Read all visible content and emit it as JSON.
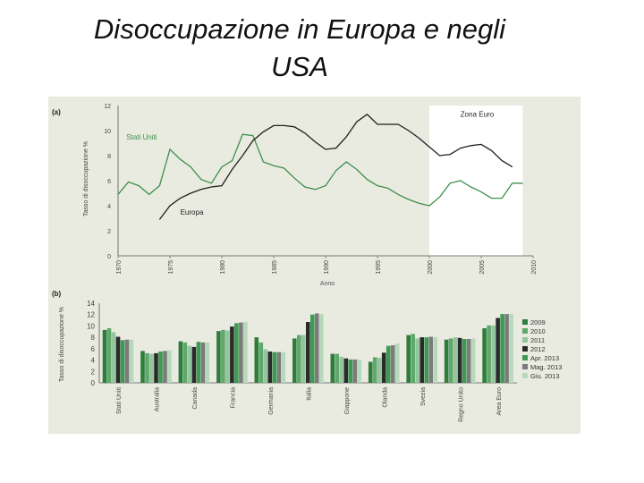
{
  "slide": {
    "title_line1": "Disoccupazione in Europa e negli",
    "title_line2": "USA"
  },
  "chart_data": [
    {
      "type": "line",
      "panel_label": "(a)",
      "ylabel": "Tasso di disoccupazione %",
      "xlabel": "Anno",
      "xlim": [
        1970,
        2010
      ],
      "ylim": [
        0,
        12
      ],
      "x_ticks": [
        1970,
        1975,
        1980,
        1985,
        1990,
        1995,
        2000,
        2005,
        2010
      ],
      "y_ticks": [
        0,
        2,
        4,
        6,
        8,
        10,
        12
      ],
      "shaded_region": {
        "label": "Zona Euro",
        "x_start": 2000,
        "x_end": 2009
      },
      "series": [
        {
          "name": "Stati Uniti",
          "color": "#3e8f4c",
          "x": [
            1970,
            1971,
            1972,
            1973,
            1974,
            1975,
            1976,
            1977,
            1978,
            1979,
            1980,
            1981,
            1982,
            1983,
            1984,
            1985,
            1986,
            1987,
            1988,
            1989,
            1990,
            1991,
            1992,
            1993,
            1994,
            1995,
            1996,
            1997,
            1998,
            1999,
            2000,
            2001,
            2002,
            2003,
            2004,
            2005,
            2006,
            2007,
            2008,
            2009
          ],
          "y": [
            4.9,
            5.9,
            5.6,
            4.9,
            5.6,
            8.5,
            7.7,
            7.1,
            6.1,
            5.8,
            7.1,
            7.6,
            9.7,
            9.6,
            7.5,
            7.2,
            7.0,
            6.2,
            5.5,
            5.3,
            5.6,
            6.8,
            7.5,
            6.9,
            6.1,
            5.6,
            5.4,
            4.9,
            4.5,
            4.2,
            4.0,
            4.7,
            5.8,
            6.0,
            5.5,
            5.1,
            4.6,
            4.6,
            5.8,
            5.8
          ]
        },
        {
          "name": "Europa",
          "color": "#1f1f1f",
          "x": [
            1974,
            1975,
            1976,
            1977,
            1978,
            1979,
            1980,
            1981,
            1982,
            1983,
            1984,
            1985,
            1986,
            1987,
            1988,
            1989,
            1990,
            1991,
            1992,
            1993,
            1994,
            1995,
            1996,
            1997,
            1998,
            1999,
            2000,
            2001,
            2002,
            2003,
            2004,
            2005,
            2006,
            2007,
            2008
          ],
          "y": [
            2.9,
            4.0,
            4.6,
            5.0,
            5.3,
            5.5,
            5.6,
            6.9,
            8.0,
            9.2,
            9.9,
            10.4,
            10.4,
            10.3,
            9.8,
            9.1,
            8.5,
            8.6,
            9.5,
            10.7,
            11.3,
            10.5,
            10.5,
            10.5,
            10.0,
            9.4,
            8.7,
            8.0,
            8.1,
            8.6,
            8.8,
            8.9,
            8.4,
            7.6,
            7.1
          ]
        }
      ]
    },
    {
      "type": "bar",
      "panel_label": "(b)",
      "ylabel": "Tasso di disoccupazione %",
      "ylim": [
        0,
        14
      ],
      "y_ticks": [
        0,
        2,
        4,
        6,
        8,
        10,
        12,
        14
      ],
      "categories": [
        "Stati Uniti",
        "Australia",
        "Canada",
        "Francia",
        "Germania",
        "Italia",
        "Giappone",
        "Olanda",
        "Svezia",
        "Regno Unito",
        "Area Euro"
      ],
      "series": [
        {
          "name": "2009",
          "color": "#2f7d3c",
          "values": [
            9.3,
            5.6,
            7.3,
            9.1,
            8.0,
            7.8,
            5.1,
            3.7,
            8.4,
            7.6,
            9.6
          ]
        },
        {
          "name": "2010",
          "color": "#5fa86c",
          "values": [
            9.6,
            5.2,
            7.1,
            9.3,
            7.1,
            8.4,
            5.1,
            4.5,
            8.6,
            7.8,
            10.1
          ]
        },
        {
          "name": "2011",
          "color": "#95c59d",
          "values": [
            8.9,
            5.1,
            6.5,
            9.2,
            5.9,
            8.4,
            4.6,
            4.4,
            7.8,
            8.0,
            10.1
          ]
        },
        {
          "name": "2012",
          "color": "#2a2a2a",
          "values": [
            8.1,
            5.2,
            6.3,
            9.9,
            5.5,
            10.7,
            4.3,
            5.3,
            8.0,
            7.9,
            11.4
          ]
        },
        {
          "name": "Apr. 2013",
          "color": "#3d9a52",
          "values": [
            7.5,
            5.5,
            7.2,
            10.5,
            5.4,
            12.0,
            4.1,
            6.5,
            8.0,
            7.7,
            12.1
          ]
        },
        {
          "name": "Mag. 2013",
          "color": "#7b7b7b",
          "values": [
            7.6,
            5.6,
            7.1,
            10.6,
            5.4,
            12.2,
            4.1,
            6.6,
            8.1,
            7.7,
            12.1
          ]
        },
        {
          "name": "Giu. 2013",
          "color": "#b6d9bb",
          "values": [
            7.6,
            5.7,
            7.1,
            10.7,
            5.4,
            12.1,
            4.1,
            6.9,
            8.0,
            7.8,
            12.1
          ]
        }
      ]
    }
  ]
}
